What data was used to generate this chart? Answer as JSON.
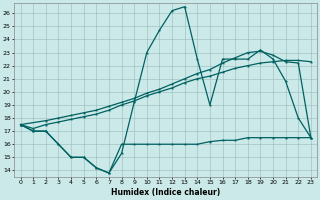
{
  "xlabel": "Humidex (Indice chaleur)",
  "xlim": [
    -0.5,
    23.5
  ],
  "ylim": [
    13.5,
    26.8
  ],
  "yticks": [
    14,
    15,
    16,
    17,
    18,
    19,
    20,
    21,
    22,
    23,
    24,
    25,
    26
  ],
  "xticks": [
    0,
    1,
    2,
    3,
    4,
    5,
    6,
    7,
    8,
    9,
    10,
    11,
    12,
    13,
    14,
    15,
    16,
    17,
    18,
    19,
    20,
    21,
    22,
    23
  ],
  "bg_color": "#cbe9e9",
  "grid_color": "#99bbbb",
  "line_color": "#006060",
  "line1_x": [
    0,
    1,
    2,
    3,
    4,
    5,
    6,
    7,
    8,
    9,
    10,
    11,
    12,
    13,
    14,
    15,
    16,
    17,
    18,
    19,
    20,
    21,
    22,
    23
  ],
  "line1_y": [
    17.5,
    17.0,
    17.0,
    16.0,
    15.0,
    15.0,
    14.2,
    13.8,
    15.3,
    19.2,
    23.0,
    24.7,
    26.2,
    26.5,
    22.5,
    19.0,
    22.5,
    22.5,
    22.5,
    23.2,
    22.5,
    20.8,
    18.0,
    16.5
  ],
  "line2_x": [
    0,
    1,
    2,
    3,
    4,
    5,
    6,
    7,
    8,
    9,
    10,
    11,
    12,
    13,
    14,
    15,
    16,
    17,
    18,
    19,
    20,
    21,
    22,
    23
  ],
  "line2_y": [
    17.5,
    17.2,
    17.5,
    17.7,
    17.9,
    18.1,
    18.3,
    18.6,
    19.0,
    19.3,
    19.7,
    20.0,
    20.3,
    20.7,
    21.0,
    21.2,
    21.5,
    21.8,
    22.0,
    22.2,
    22.3,
    22.4,
    22.4,
    22.3
  ],
  "line3_x": [
    0,
    2,
    3,
    4,
    5,
    6,
    7,
    8,
    9,
    10,
    11,
    12,
    13,
    14,
    15,
    16,
    17,
    18,
    19,
    20,
    21,
    22,
    23
  ],
  "line3_y": [
    17.5,
    17.8,
    18.0,
    18.2,
    18.4,
    18.6,
    18.9,
    19.2,
    19.5,
    19.9,
    20.2,
    20.6,
    21.0,
    21.4,
    21.7,
    22.2,
    22.6,
    23.0,
    23.1,
    22.8,
    22.3,
    22.2,
    16.5
  ],
  "line4_x": [
    0,
    1,
    2,
    3,
    4,
    5,
    6,
    7,
    8,
    9,
    10,
    11,
    12,
    13,
    14,
    15,
    16,
    17,
    18,
    19,
    20,
    21,
    22,
    23
  ],
  "line4_y": [
    17.5,
    17.0,
    17.0,
    16.0,
    15.0,
    15.0,
    14.2,
    13.8,
    16.0,
    16.0,
    16.0,
    16.0,
    16.0,
    16.0,
    16.0,
    16.2,
    16.3,
    16.3,
    16.5,
    16.5,
    16.5,
    16.5,
    16.5,
    16.5
  ]
}
